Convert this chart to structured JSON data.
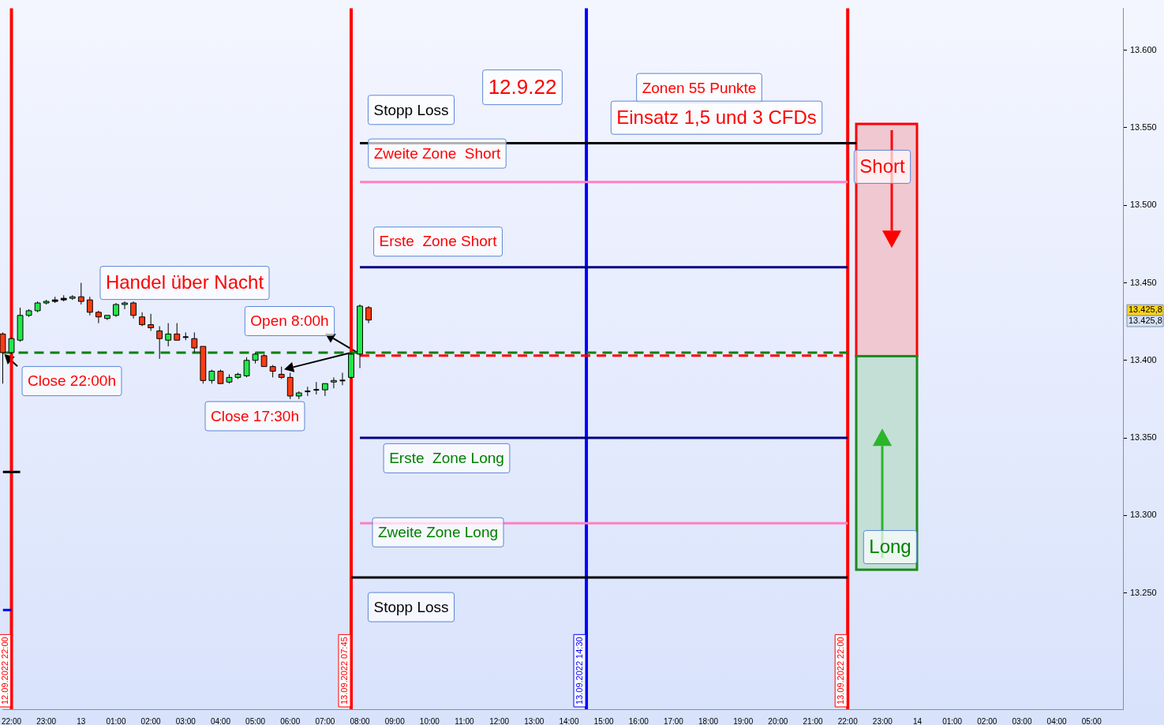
{
  "chart_data": {
    "type": "candlestick",
    "x": [
      "2022-09-12T21:45",
      "2022-09-12T22:00",
      "2022-09-12T22:15",
      "2022-09-12T22:30",
      "2022-09-12T22:45",
      "2022-09-12T23:00",
      "2022-09-12T23:15",
      "2022-09-12T23:30",
      "2022-09-12T23:45",
      "2022-09-13T00:00",
      "2022-09-13T00:15",
      "2022-09-13T00:30",
      "2022-09-13T00:45",
      "2022-09-13T01:00",
      "2022-09-13T01:15",
      "2022-09-13T01:30",
      "2022-09-13T01:45",
      "2022-09-13T02:00",
      "2022-09-13T02:15",
      "2022-09-13T02:30",
      "2022-09-13T02:45",
      "2022-09-13T03:00",
      "2022-09-13T03:15",
      "2022-09-13T03:30",
      "2022-09-13T03:45",
      "2022-09-13T04:00",
      "2022-09-13T04:15",
      "2022-09-13T04:30",
      "2022-09-13T04:45",
      "2022-09-13T05:00",
      "2022-09-13T05:15",
      "2022-09-13T05:30",
      "2022-09-13T05:45",
      "2022-09-13T06:00",
      "2022-09-13T06:15",
      "2022-09-13T06:30",
      "2022-09-13T06:45",
      "2022-09-13T07:00",
      "2022-09-13T07:15",
      "2022-09-13T07:30",
      "2022-09-13T07:45",
      "2022-09-13T08:00",
      "2022-09-13T08:15"
    ],
    "ohlc": [
      [
        13417,
        13418,
        13385,
        13405
      ],
      [
        13405,
        13415,
        13404,
        13414
      ],
      [
        13413,
        13434,
        13412,
        13429
      ],
      [
        13429,
        13433,
        13428,
        13432
      ],
      [
        13432,
        13438,
        13431,
        13437
      ],
      [
        13437,
        13439,
        13436,
        13438
      ],
      [
        13438,
        13441,
        13437,
        13439
      ],
      [
        13439,
        13442,
        13438,
        13440
      ],
      [
        13440,
        13442,
        13439,
        13441
      ],
      [
        13441,
        13450,
        13436,
        13438
      ],
      [
        13439,
        13441,
        13429,
        13431
      ],
      [
        13431,
        13432,
        13424,
        13428
      ],
      [
        13427,
        13429,
        13426,
        13429
      ],
      [
        13429,
        13437,
        13428,
        13436
      ],
      [
        13436,
        13438,
        13433,
        13437
      ],
      [
        13437,
        13438,
        13427,
        13429
      ],
      [
        13428,
        13431,
        13422,
        13423
      ],
      [
        13423,
        13430,
        13419,
        13421
      ],
      [
        13419,
        13422,
        13401,
        13414
      ],
      [
        13413,
        13424,
        13409,
        13417
      ],
      [
        13417,
        13424,
        13413,
        13413
      ],
      [
        13415,
        13418,
        13413,
        13415
      ],
      [
        13414,
        13418,
        13405,
        13408
      ],
      [
        13409,
        13409,
        13385,
        13387
      ],
      [
        13387,
        13394,
        13385,
        13393
      ],
      [
        13393,
        13394,
        13385,
        13385
      ],
      [
        13386,
        13391,
        13385,
        13389
      ],
      [
        13389,
        13392,
        13388,
        13391
      ],
      [
        13390,
        13402,
        13389,
        13400
      ],
      [
        13400,
        13405,
        13398,
        13404
      ],
      [
        13403,
        13404,
        13396,
        13396
      ],
      [
        13396,
        13397,
        13389,
        13393
      ],
      [
        13391,
        13396,
        13388,
        13389
      ],
      [
        13389,
        13392,
        13375,
        13377
      ],
      [
        13377,
        13380,
        13375,
        13379
      ],
      [
        13380,
        13383,
        13377,
        13380
      ],
      [
        13381,
        13386,
        13378,
        13381
      ],
      [
        13381,
        13385,
        13377,
        13385
      ],
      [
        13386,
        13389,
        13382,
        13387
      ],
      [
        13387,
        13392,
        13384,
        13387
      ],
      [
        13389,
        13405,
        13388,
        13404
      ],
      [
        13404,
        13436,
        13395,
        13435
      ],
      [
        13434,
        13435,
        13424,
        13426
      ]
    ],
    "colors": [
      "#ff3c14",
      "#22e84a",
      "#22e84a",
      "#22e84a",
      "#22e84a",
      "#22e84a",
      "#000000",
      "#000000",
      "#22e84a",
      "#ff3c14",
      "#ff3c14",
      "#ff3c14",
      "#22e84a",
      "#22e84a",
      "#22e84a",
      "#ff3c14",
      "#ff3c14",
      "#ff3c14",
      "#ff3c14",
      "#22e84a",
      "#ff3c14",
      "#000000",
      "#ff3c14",
      "#ff3c14",
      "#22e84a",
      "#ff3c14",
      "#22e84a",
      "#22e84a",
      "#22e84a",
      "#22e84a",
      "#ff3c14",
      "#ff3c14",
      "#ff3c14",
      "#ff3c14",
      "#22e84a",
      "#000000",
      "#000000",
      "#22e84a",
      "#22e84a",
      "#000000",
      "#22e84a",
      "#22e84a",
      "#ff3c14"
    ],
    "series": [
      {
        "type": "line",
        "x": [
          "2022-09-13T08:00",
          "2022-09-13T22:15"
        ],
        "values": [
          13540,
          13540
        ],
        "color": "#000000"
      },
      {
        "type": "line",
        "x": [
          "2022-09-13T08:00",
          "2022-09-13T22:00"
        ],
        "values": [
          13515,
          13515
        ],
        "color": "#ff80c0"
      },
      {
        "type": "line",
        "x": [
          "2022-09-13T08:00",
          "2022-09-13T22:00"
        ],
        "values": [
          13460,
          13460
        ],
        "color": "#000080"
      },
      {
        "type": "line",
        "x": [
          "2022-09-12T21:45",
          "2022-09-13T22:00"
        ],
        "values": [
          13405,
          13405
        ],
        "color": "#008000",
        "line_style": "dashed"
      },
      {
        "type": "line",
        "x": [
          "2022-09-13T08:00",
          "2022-09-13T22:00"
        ],
        "values": [
          13403,
          13403
        ],
        "color": "#ff0000",
        "line_style": "dashed"
      },
      {
        "type": "line",
        "x": [
          "2022-09-13T08:00",
          "2022-09-13T22:00"
        ],
        "values": [
          13350,
          13350
        ],
        "color": "#000080"
      },
      {
        "type": "line",
        "x": [
          "2022-09-13T08:00",
          "2022-09-13T22:00"
        ],
        "values": [
          13295,
          13295
        ],
        "color": "#ff80c0"
      },
      {
        "type": "line",
        "x": [
          "2022-09-13T07:45",
          "2022-09-13T22:00"
        ],
        "values": [
          13260,
          13260
        ],
        "color": "#000000"
      },
      {
        "type": "line",
        "x": [
          "2022-09-12T21:45",
          "2022-09-12T22:15"
        ],
        "values": [
          13328,
          13328
        ],
        "color": "#000000"
      },
      {
        "type": "line",
        "x": [
          "2022-09-12T21:45",
          "2022-09-12T22:00"
        ],
        "values": [
          13239,
          13239
        ],
        "color": "#0000ff"
      }
    ],
    "ref_lines": [
      {
        "axis": "x",
        "value": "2022-09-12T22:00",
        "label": "12.09.2022 22:00",
        "color": "#ff0000"
      },
      {
        "axis": "x",
        "value": "2022-09-13T07:45",
        "label": "13.09.2022 07:45",
        "color": "#ff0000"
      },
      {
        "axis": "x",
        "value": "2022-09-13T14:30",
        "label": "13.09.2022 14:30",
        "color": "#0000ff"
      },
      {
        "axis": "x",
        "value": "2022-09-13T22:00",
        "label": "13.09.2022 22:00",
        "color": "#ff0000"
      }
    ],
    "annotations": [
      "Stopp Loss",
      "12.9.22",
      "Zonen 55 Punkte",
      "Einsatz 1,5 und 3 CFDs",
      "Zweite Zone  Short",
      "Erste  Zone Short",
      "Short",
      "Handel über Nacht",
      {
        "text": "Open 8:00h",
        "x": "2022-09-13T08:00",
        "y": 13404
      },
      {
        "text": "Close 22:00h",
        "x": "2022-09-12T21:45",
        "y": 13405
      },
      "Close 17:30h",
      "Erste  Zone Long",
      "Zweite Zone Long",
      "Long",
      "Stopp Loss",
      "13.425,8",
      "13.425,8"
    ],
    "xlim": [
      "2022-09-12T21:45",
      "2022-09-14T05:54"
    ],
    "xticks": [
      {
        "value": "2022-09-12T22:00",
        "label": "22:00"
      },
      {
        "value": "2022-09-12T23:00",
        "label": "23:00"
      },
      {
        "value": "2022-09-13T00:00",
        "label": "13"
      },
      {
        "value": "2022-09-13T01:00",
        "label": "01:00"
      },
      {
        "value": "2022-09-13T02:00",
        "label": "02:00"
      },
      {
        "value": "2022-09-13T03:00",
        "label": "03:00"
      },
      {
        "value": "2022-09-13T04:00",
        "label": "04:00"
      },
      {
        "value": "2022-09-13T05:00",
        "label": "05:00"
      },
      {
        "value": "2022-09-13T06:00",
        "label": "06:00"
      },
      {
        "value": "2022-09-13T07:00",
        "label": "07:00"
      },
      {
        "value": "2022-09-13T08:00",
        "label": "08:00"
      },
      {
        "value": "2022-09-13T09:00",
        "label": "09:00"
      },
      {
        "value": "2022-09-13T10:00",
        "label": "10:00"
      },
      {
        "value": "2022-09-13T11:00",
        "label": "11:00"
      },
      {
        "value": "2022-09-13T12:00",
        "label": "12:00"
      },
      {
        "value": "2022-09-13T13:00",
        "label": "13:00"
      },
      {
        "value": "2022-09-13T14:00",
        "label": "14:00"
      },
      {
        "value": "2022-09-13T15:00",
        "label": "15:00"
      },
      {
        "value": "2022-09-13T16:00",
        "label": "16:00"
      },
      {
        "value": "2022-09-13T17:00",
        "label": "17:00"
      },
      {
        "value": "2022-09-13T18:00",
        "label": "18:00"
      },
      {
        "value": "2022-09-13T19:00",
        "label": "19:00"
      },
      {
        "value": "2022-09-13T20:00",
        "label": "20:00"
      },
      {
        "value": "2022-09-13T21:00",
        "label": "21:00"
      },
      {
        "value": "2022-09-13T22:00",
        "label": "22:00"
      },
      {
        "value": "2022-09-13T23:00",
        "label": "23:00"
      },
      {
        "value": "2022-09-14T00:00",
        "label": "14"
      },
      {
        "value": "2022-09-14T01:00",
        "label": "01:00"
      },
      {
        "value": "2022-09-14T02:00",
        "label": "02:00"
      },
      {
        "value": "2022-09-14T03:00",
        "label": "03:00"
      },
      {
        "value": "2022-09-14T04:00",
        "label": "04:00"
      },
      {
        "value": "2022-09-14T05:00",
        "label": "05:00"
      }
    ],
    "ylim": [
      13175,
      13627
    ],
    "yticks": [
      {
        "value": 13250,
        "label": "13.250"
      },
      {
        "value": 13300,
        "label": "13.300"
      },
      {
        "value": 13350,
        "label": "13.350"
      },
      {
        "value": 13400,
        "label": "13.400"
      },
      {
        "value": 13450,
        "label": "13.450"
      },
      {
        "value": 13500,
        "label": "13.500"
      },
      {
        "value": 13550,
        "label": "13.550"
      },
      {
        "value": 13600,
        "label": "13.600"
      }
    ],
    "grid": false,
    "legend": false,
    "marker": "none"
  }
}
